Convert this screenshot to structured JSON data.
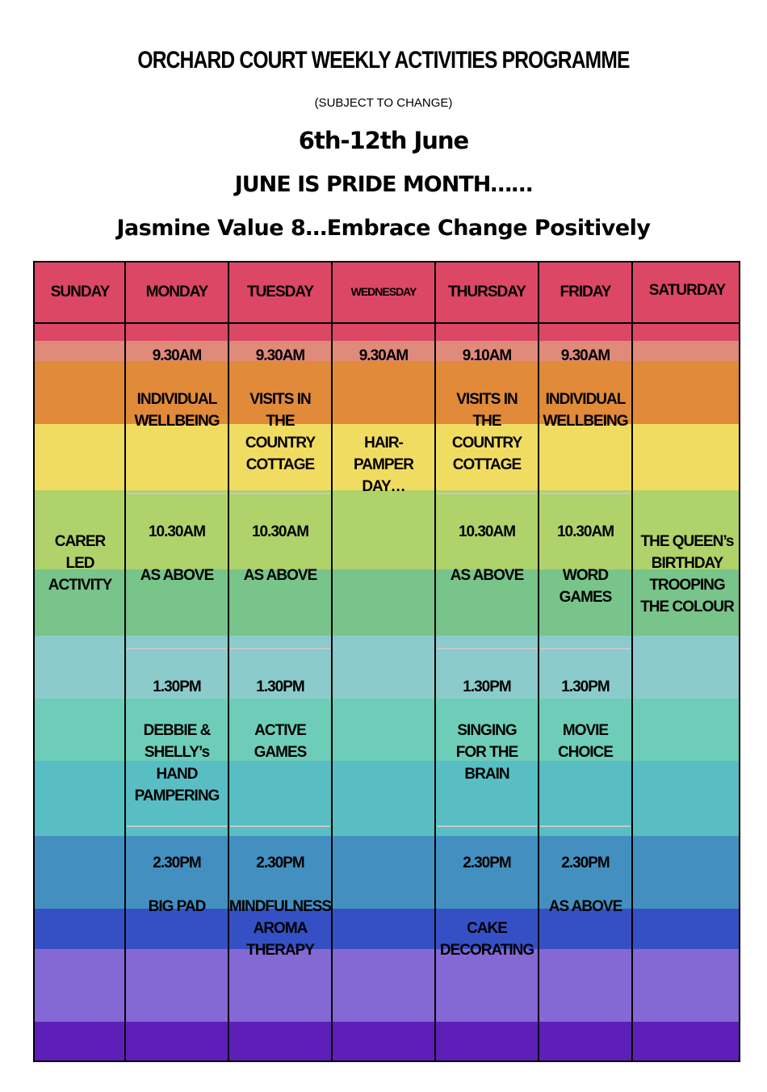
{
  "header": {
    "title": "ORCHARD COURT WEEKLY ACTIVITIES PROGRAMME",
    "subtitle": "(SUBJECT TO CHANGE)",
    "dates": "6th-12th June",
    "pride": "JUNE IS PRIDE MONTH……",
    "value": "Jasmine Value 8…Embrace Change Positively"
  },
  "colors": {
    "header": "#dc4766",
    "bands": [
      "#dc4766",
      "#e08a7a",
      "#e08a3a",
      "#f1dc62",
      "#b0d26a",
      "#78c48a",
      "#8ccbcb",
      "#6ecdb8",
      "#58bec4",
      "#4390c0",
      "#3550c4",
      "#8468d4",
      "#5e1fb8"
    ]
  },
  "days": [
    {
      "name": "SUNDAY",
      "slots": [
        {
          "time": "",
          "activity": "CARER\nLED\nACTIVITY"
        }
      ]
    },
    {
      "name": "MONDAY",
      "slots": [
        {
          "time": "9.30AM",
          "activity": "INDIVIDUAL\nWELLBEING"
        },
        {
          "time": "10.30AM",
          "activity": "AS ABOVE"
        },
        {
          "time": "1.30PM",
          "activity": "DEBBIE &\nSHELLY’s\nHAND\nPAMPERING"
        },
        {
          "time": "2.30PM",
          "activity": "BIG PAD"
        }
      ]
    },
    {
      "name": "TUESDAY",
      "slots": [
        {
          "time": "9.30AM",
          "activity": "VISITS IN\nTHE\nCOUNTRY\nCOTTAGE"
        },
        {
          "time": "10.30AM",
          "activity": "AS ABOVE"
        },
        {
          "time": "1.30PM",
          "activity": "ACTIVE\nGAMES"
        },
        {
          "time": "2.30PM",
          "activity": "MINDFULNESS\nAROMA\nTHERAPY"
        }
      ]
    },
    {
      "name": "WEDNESDAY",
      "slots": [
        {
          "time": "9.30AM",
          "activity": "HAIR-\nPAMPER\nDAY…"
        }
      ]
    },
    {
      "name": "THURSDAY",
      "slots": [
        {
          "time": "9.10AM",
          "activity": "VISITS IN\nTHE\nCOUNTRY\nCOTTAGE"
        },
        {
          "time": "10.30AM",
          "activity": "AS ABOVE"
        },
        {
          "time": "1.30PM",
          "activity": "SINGING\nFOR THE\nBRAIN"
        },
        {
          "time": "2.30PM",
          "activity": "CAKE\nDECORATING"
        }
      ]
    },
    {
      "name": "FRIDAY",
      "slots": [
        {
          "time": "9.30AM",
          "activity": "INDIVIDUAL\nWELLBEING"
        },
        {
          "time": "10.30AM",
          "activity": "WORD\nGAMES"
        },
        {
          "time": "1.30PM",
          "activity": "MOVIE\nCHOICE"
        },
        {
          "time": "2.30PM",
          "activity": "AS ABOVE"
        }
      ]
    },
    {
      "name": "SATURDAY",
      "slots": [
        {
          "time": "",
          "activity": "THE QUEEN’s\nBIRTHDAY\nTROOPING\nTHE COLOUR"
        }
      ]
    }
  ]
}
